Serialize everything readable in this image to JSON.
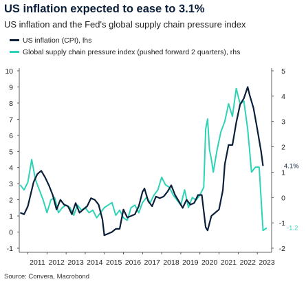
{
  "header": {
    "title": "US inflation expected to ease to 3.1%",
    "subtitle": "US inflation and the Fed's global supply chain pressure index"
  },
  "source": "Source: Convera, Macrobond",
  "colors": {
    "cpi": "#0b1f3a",
    "gscpi": "#2ed3b7"
  },
  "chart_data": {
    "type": "line",
    "title": "US inflation expected to ease to 3.1%",
    "subtitle": "US inflation and the Fed's global supply chain pressure index",
    "x_ticks": [
      "2011",
      "2012",
      "2013",
      "2014",
      "2015",
      "2016",
      "2017",
      "2018",
      "2019",
      "2020",
      "2021",
      "2022",
      "2023"
    ],
    "y_left": {
      "ticks": [
        -1,
        0,
        1,
        2,
        3,
        4,
        5,
        6,
        7,
        8,
        9,
        10
      ],
      "ylim": [
        -1,
        10
      ]
    },
    "y_right": {
      "ticks": [
        -2,
        -1,
        0,
        1,
        2,
        3,
        4,
        5
      ],
      "ylim": [
        -2,
        5
      ]
    },
    "grid": false,
    "legend_position": "top-left",
    "end_labels": [
      {
        "text": "4.1%",
        "series": "cpi"
      },
      {
        "text": "-1.2",
        "series": "gscpi"
      }
    ],
    "series": [
      {
        "name": "US inflation (CPI), lhs",
        "axis": "left",
        "x": [
          2010.6,
          2010.8,
          2011.0,
          2011.3,
          2011.5,
          2011.7,
          2011.9,
          2012.1,
          2012.3,
          2012.5,
          2012.7,
          2012.9,
          2013.1,
          2013.3,
          2013.5,
          2013.7,
          2013.9,
          2014.1,
          2014.3,
          2014.5,
          2014.7,
          2014.9,
          2015.0,
          2015.2,
          2015.4,
          2015.6,
          2015.8,
          2016.0,
          2016.2,
          2016.4,
          2016.6,
          2016.8,
          2017.0,
          2017.1,
          2017.3,
          2017.5,
          2017.7,
          2017.9,
          2018.1,
          2018.3,
          2018.5,
          2018.7,
          2018.9,
          2019.1,
          2019.3,
          2019.5,
          2019.7,
          2019.9,
          2020.1,
          2020.3,
          2020.4,
          2020.6,
          2020.8,
          2021.0,
          2021.2,
          2021.3,
          2021.5,
          2021.7,
          2021.9,
          2022.1,
          2022.3,
          2022.5,
          2022.6,
          2022.8,
          2023.0,
          2023.2,
          2023.3
        ],
        "values": [
          1.2,
          1.1,
          1.6,
          3.1,
          3.6,
          3.8,
          3.4,
          2.9,
          2.3,
          1.4,
          2.0,
          1.7,
          1.6,
          1.1,
          1.8,
          1.2,
          1.4,
          1.6,
          2.1,
          2.0,
          1.7,
          0.8,
          -0.2,
          -0.1,
          0.0,
          0.2,
          0.2,
          1.4,
          0.9,
          1.0,
          1.1,
          1.6,
          2.5,
          2.7,
          1.9,
          1.6,
          2.2,
          2.1,
          2.2,
          2.5,
          2.9,
          2.3,
          1.9,
          1.5,
          2.0,
          1.7,
          1.8,
          2.3,
          2.3,
          0.3,
          0.1,
          1.0,
          1.2,
          1.4,
          2.6,
          4.2,
          5.4,
          5.4,
          6.8,
          7.9,
          8.3,
          9.0,
          8.5,
          7.7,
          6.4,
          5.0,
          4.1
        ]
      },
      {
        "name": "Global supply chain pressure index (pushed forward 2 quarters), rhs",
        "axis": "right",
        "x": [
          2010.6,
          2010.8,
          2011.0,
          2011.2,
          2011.4,
          2011.6,
          2011.8,
          2012.0,
          2012.2,
          2012.4,
          2012.6,
          2012.8,
          2013.0,
          2013.2,
          2013.4,
          2013.6,
          2013.8,
          2014.0,
          2014.2,
          2014.4,
          2014.6,
          2014.8,
          2015.0,
          2015.2,
          2015.4,
          2015.6,
          2015.8,
          2016.0,
          2016.2,
          2016.4,
          2016.6,
          2016.8,
          2017.0,
          2017.2,
          2017.4,
          2017.6,
          2017.8,
          2018.0,
          2018.2,
          2018.4,
          2018.6,
          2018.8,
          2019.0,
          2019.2,
          2019.4,
          2019.6,
          2019.8,
          2020.0,
          2020.2,
          2020.3,
          2020.4,
          2020.5,
          2020.6,
          2020.7,
          2020.9,
          2021.1,
          2021.3,
          2021.5,
          2021.7,
          2021.9,
          2022.1,
          2022.3,
          2022.5,
          2022.7,
          2022.9,
          2023.1,
          2023.3,
          2023.5
        ],
        "values": [
          0.5,
          0.3,
          0.6,
          1.5,
          0.7,
          0.3,
          -0.1,
          -0.6,
          -0.1,
          0.0,
          -0.6,
          -0.4,
          -0.3,
          -0.4,
          -0.7,
          -0.3,
          -0.5,
          -0.4,
          -0.6,
          -0.5,
          -0.8,
          -0.6,
          -0.4,
          -0.3,
          -0.2,
          -0.7,
          -0.5,
          -0.8,
          -0.9,
          -0.4,
          -0.3,
          -0.6,
          -0.2,
          0.0,
          -0.2,
          0.1,
          0.3,
          0.8,
          0.5,
          0.4,
          0.1,
          -0.1,
          -0.3,
          0.3,
          -0.4,
          0.0,
          -0.1,
          0.1,
          0.4,
          2.7,
          3.1,
          1.9,
          1.5,
          1.0,
          1.9,
          2.6,
          3.0,
          3.7,
          3.2,
          4.3,
          3.7,
          3.8,
          2.7,
          1.0,
          1.2,
          1.2,
          -1.3,
          -1.2
        ]
      }
    ]
  }
}
